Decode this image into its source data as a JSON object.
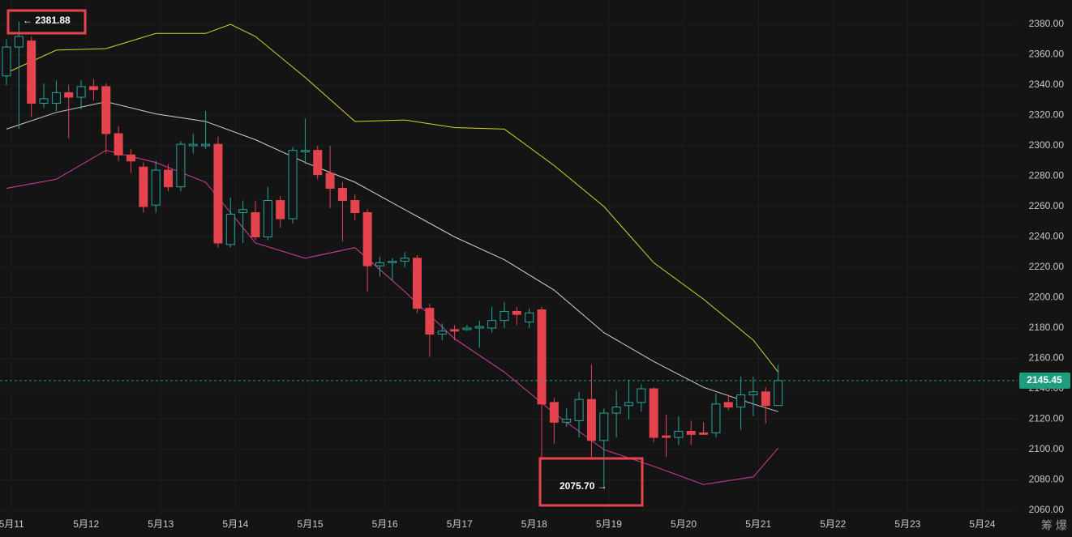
{
  "chart_data": {
    "type": "candlestick",
    "x": [
      0,
      1,
      2,
      3,
      4,
      5,
      6,
      7,
      8,
      9,
      10,
      11,
      12,
      13,
      14,
      15,
      16,
      17,
      18,
      19,
      20,
      21,
      22,
      23,
      24,
      25,
      26,
      27,
      28,
      29,
      30,
      31,
      32,
      33,
      34,
      35,
      36,
      37,
      38,
      39,
      40,
      41,
      42,
      43,
      44,
      45,
      46,
      47,
      48,
      49,
      50,
      51,
      52,
      53,
      54,
      55,
      56,
      57,
      58,
      59,
      60,
      61,
      62
    ],
    "open": [
      2346,
      2365,
      2369,
      2328,
      2328,
      2335,
      2332,
      2339,
      2339,
      2308,
      2294,
      2286,
      2261,
      2284,
      2273,
      2300,
      2300,
      2301,
      2235,
      2256,
      2256,
      2240,
      2264,
      2252,
      2296,
      2297,
      2282,
      2272,
      2264,
      2256,
      2221,
      2223,
      2224,
      2226,
      2193,
      2176,
      2179,
      2179,
      2180,
      2180,
      2185,
      2191,
      2184,
      2192,
      2131,
      2118,
      2119,
      2133,
      2106,
      2124,
      2129,
      2131,
      2140,
      2109,
      2108,
      2112,
      2111,
      2111,
      2131,
      2128,
      2136,
      2138,
      2129
    ],
    "high": [
      2370,
      2381.88,
      2372,
      2341,
      2343,
      2340,
      2343,
      2344,
      2341,
      2313,
      2298,
      2289,
      2290,
      2288,
      2303,
      2308,
      2323,
      2306,
      2266,
      2264,
      2264,
      2273,
      2267,
      2299,
      2318,
      2300,
      2300,
      2276,
      2268,
      2258,
      2227,
      2226,
      2230,
      2228,
      2196,
      2183,
      2182,
      2182,
      2185,
      2194,
      2197,
      2194,
      2193,
      2194,
      2134,
      2127,
      2138,
      2156,
      2127,
      2139,
      2146,
      2143,
      2141,
      2123,
      2122,
      2119,
      2118,
      2137,
      2136,
      2148,
      2148,
      2141,
      2156
    ],
    "low": [
      2340,
      2311,
      2319,
      2325,
      2323,
      2305,
      2324,
      2330,
      2295,
      2290,
      2282,
      2256,
      2256,
      2270,
      2270,
      2295,
      2298,
      2233,
      2233,
      2236,
      2238,
      2238,
      2246,
      2249,
      2288,
      2278,
      2259,
      2237,
      2251,
      2204,
      2214,
      2211,
      2220,
      2190,
      2161,
      2172,
      2172,
      2178,
      2167,
      2177,
      2180,
      2182,
      2180,
      2095,
      2104,
      2115,
      2108,
      2095,
      2075.7,
      2108,
      2120,
      2125,
      2105,
      2095,
      2103,
      2103,
      2110,
      2108,
      2126,
      2113,
      2122,
      2117,
      2129
    ],
    "close": [
      2365,
      2372,
      2328,
      2331,
      2335,
      2332,
      2339,
      2337,
      2308,
      2294,
      2290,
      2260,
      2284,
      2273,
      2301,
      2301,
      2301,
      2236,
      2255,
      2258,
      2240,
      2264,
      2252,
      2297,
      2297,
      2281,
      2272,
      2264,
      2256,
      2221,
      2223,
      2224,
      2226,
      2193,
      2176,
      2178,
      2178,
      2180,
      2181,
      2185,
      2191,
      2189,
      2190,
      2130,
      2118,
      2120,
      2133,
      2106,
      2124,
      2128,
      2131,
      2140,
      2108,
      2108,
      2112,
      2110,
      2110,
      2130,
      2128,
      2136,
      2138,
      2129,
      2145.45
    ],
    "up_color": "#26a69a",
    "down_color": "#e5444f",
    "series": [
      {
        "color": "#d4d42a",
        "x": [
          0,
          4,
          8,
          12,
          16,
          18,
          20,
          24,
          28,
          32,
          36,
          40,
          44,
          48,
          52,
          56,
          60,
          62
        ],
        "values": [
          2348,
          2363,
          2364,
          2374,
          2374,
          2380,
          2372,
          2345,
          2316,
          2317,
          2312,
          2311,
          2287,
          2260,
          2223,
          2199,
          2172,
          2151
        ]
      },
      {
        "color": "#cfcfcf",
        "x": [
          0,
          4,
          8,
          12,
          16,
          20,
          24,
          28,
          32,
          36,
          40,
          44,
          48,
          52,
          56,
          60,
          62
        ],
        "values": [
          2311,
          2322,
          2329,
          2321,
          2316,
          2304,
          2289,
          2276,
          2258,
          2240,
          2225,
          2205,
          2177,
          2158,
          2141,
          2130,
          2125
        ]
      },
      {
        "color": "#d23f9e",
        "x": [
          0,
          4,
          8,
          12,
          16,
          20,
          24,
          28,
          32,
          36,
          40,
          44,
          48,
          52,
          56,
          60,
          62
        ],
        "values": [
          2272,
          2278,
          2297,
          2289,
          2276,
          2236,
          2226,
          2233,
          2204,
          2173,
          2151,
          2124,
          2100,
          2089,
          2077,
          2082,
          2101
        ]
      }
    ],
    "xlim": [
      -0.52,
      81.24
    ],
    "ylim": [
      2056.3,
      2396
    ],
    "xticks": [
      {
        "value": 0.4,
        "label": "5月11"
      },
      {
        "value": 6.4,
        "label": "5月12"
      },
      {
        "value": 12.4,
        "label": "5月13"
      },
      {
        "value": 18.4,
        "label": "5月14"
      },
      {
        "value": 24.4,
        "label": "5月15"
      },
      {
        "value": 30.4,
        "label": "5月16"
      },
      {
        "value": 36.4,
        "label": "5月17"
      },
      {
        "value": 42.4,
        "label": "5月18"
      },
      {
        "value": 48.4,
        "label": "5月19"
      },
      {
        "value": 54.4,
        "label": "5月20"
      },
      {
        "value": 60.4,
        "label": "5月21"
      },
      {
        "value": 66.4,
        "label": "5月22"
      },
      {
        "value": 72.4,
        "label": "5月23"
      },
      {
        "value": 78.4,
        "label": "5月24"
      }
    ],
    "yticks": [
      {
        "value": 2060,
        "label": "2060.00"
      },
      {
        "value": 2080,
        "label": "2080.00"
      },
      {
        "value": 2100,
        "label": "2100.00"
      },
      {
        "value": 2120,
        "label": "2120.00"
      },
      {
        "value": 2140,
        "label": "2140.00"
      },
      {
        "value": 2160,
        "label": "2160.00"
      },
      {
        "value": 2180,
        "label": "2180.00"
      },
      {
        "value": 2200,
        "label": "2200.00"
      },
      {
        "value": 2220,
        "label": "2220.00"
      },
      {
        "value": 2240,
        "label": "2240.00"
      },
      {
        "value": 2260,
        "label": "2260.00"
      },
      {
        "value": 2280,
        "label": "2280.00"
      },
      {
        "value": 2300,
        "label": "2300.00"
      },
      {
        "value": 2320,
        "label": "2320.00"
      },
      {
        "value": 2340,
        "label": "2340.00"
      },
      {
        "value": 2360,
        "label": "2360.00"
      },
      {
        "value": 2380,
        "label": "2380.00"
      }
    ],
    "grid": true,
    "last_price": 2145.45,
    "last_price_color": "#1f9e7e",
    "annotations": [
      {
        "label": "← 2381.88"
      },
      {
        "label": "2075.70 →"
      }
    ],
    "watermark": "筹 爆"
  }
}
